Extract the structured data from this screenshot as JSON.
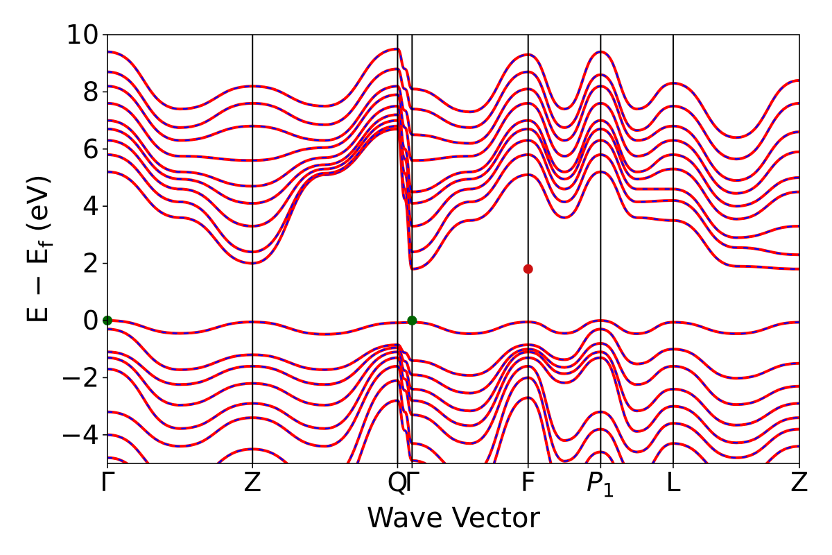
{
  "chart_data": {
    "type": "line",
    "title": "",
    "xlabel": "Wave Vector",
    "ylabel": "E − E_f (eV)",
    "ylim": [
      -5,
      10
    ],
    "yticks": [
      -4,
      -2,
      0,
      2,
      4,
      6,
      8,
      10
    ],
    "ytick_labels": [
      "−4",
      "−2",
      "0",
      "2",
      "4",
      "6",
      "8",
      "10"
    ],
    "kpath": [
      {
        "label": "Γ",
        "x": 0.0
      },
      {
        "label": "Z",
        "x": 1.0
      },
      {
        "label": "Q",
        "x": 2.0
      },
      {
        "label": "Γ",
        "x": 2.1
      },
      {
        "label": "F",
        "x": 2.9
      },
      {
        "label": "P",
        "sub": "1",
        "x": 3.4
      },
      {
        "label": "L",
        "x": 3.9
      },
      {
        "label": "Z",
        "x": 4.77
      }
    ],
    "colors": {
      "dft_bands": "#ff0000",
      "wannier_bands": "#0000ff",
      "vbm_marker": "#006400",
      "cbm_marker": "#cc1111"
    },
    "band_edges": {
      "vbm": {
        "energy": 0.0,
        "at": [
          "Γ",
          "Γ"
        ]
      },
      "cbm": {
        "energy": 1.8,
        "at": "F"
      }
    },
    "series": [
      {
        "valence": true,
        "values": [
          0.0,
          -0.05,
          -0.08,
          -0.06,
          -0.05,
          -0.0,
          -0.06,
          -0.06,
          -0.08,
          -0.06,
          -0.05,
          -0.08
        ]
      },
      {
        "valence": true,
        "values": [
          -0.3,
          -1.2,
          -0.85,
          -1.4,
          -0.85,
          -0.3,
          -1.0,
          -1.5,
          -0.8,
          -1.3,
          -0.9,
          -0.8
        ]
      },
      {
        "valence": true,
        "values": [
          -1.1,
          -1.6,
          -0.95,
          -1.9,
          -1.0,
          -0.8,
          -1.6,
          -2.3,
          -1.0,
          -1.9,
          -2.1,
          -1.0
        ]
      },
      {
        "valence": true,
        "values": [
          -1.3,
          -2.2,
          -1.1,
          -2.4,
          -1.1,
          -1.1,
          -2.4,
          -2.9,
          -1.2,
          -2.4,
          -2.6,
          -1.1
        ]
      },
      {
        "valence": true,
        "values": [
          -1.7,
          -2.9,
          -1.3,
          -2.8,
          -1.3,
          -1.3,
          -3.0,
          -3.4,
          -1.4,
          -2.9,
          -3.2,
          -1.3
        ]
      },
      {
        "valence": true,
        "values": [
          -3.2,
          -3.4,
          -1.6,
          -3.3,
          -1.6,
          -3.2,
          -3.6,
          -3.8,
          -1.7,
          -3.4,
          -3.8,
          -1.6
        ]
      },
      {
        "valence": true,
        "values": [
          -4.0,
          -4.5,
          -2.1,
          -4.3,
          -2.0,
          -3.8,
          -4.3,
          -4.4,
          -2.2,
          -4.1,
          -4.6,
          -2.0
        ]
      },
      {
        "valence": true,
        "values": [
          -4.8,
          -5.2,
          -2.8,
          -4.9,
          -2.7,
          -4.6,
          -5.1,
          -5.2,
          -3.0,
          -4.8,
          -5.3,
          -2.6
        ]
      },
      {
        "valence": false,
        "values": [
          5.2,
          2.0,
          6.7,
          1.8,
          5.1,
          5.2,
          3.5,
          1.8,
          2.6,
          6.6,
          2.1,
          6.7
        ]
      },
      {
        "valence": false,
        "values": [
          5.8,
          2.4,
          6.8,
          2.4,
          5.8,
          5.8,
          4.2,
          2.3,
          3.2,
          6.7,
          2.3,
          6.8
        ]
      },
      {
        "valence": false,
        "values": [
          6.3,
          3.3,
          7.0,
          3.3,
          6.3,
          6.3,
          4.6,
          3.3,
          4.2,
          7.0,
          3.2,
          7.0
        ]
      },
      {
        "valence": false,
        "values": [
          6.7,
          4.1,
          7.2,
          4.1,
          6.7,
          6.7,
          5.3,
          4.5,
          4.8,
          7.2,
          4.2,
          7.2
        ]
      },
      {
        "valence": false,
        "values": [
          7.0,
          4.7,
          7.5,
          4.5,
          7.0,
          7.0,
          5.8,
          5.0,
          5.6,
          7.6,
          5.0,
          7.6
        ]
      },
      {
        "valence": false,
        "values": [
          7.6,
          5.6,
          7.9,
          5.6,
          7.6,
          7.6,
          6.3,
          5.9,
          6.2,
          7.9,
          5.6,
          7.9
        ]
      },
      {
        "valence": false,
        "values": [
          8.2,
          6.8,
          8.2,
          6.5,
          8.1,
          8.2,
          6.8,
          6.6,
          6.8,
          8.2,
          6.3,
          8.3
        ]
      },
      {
        "valence": false,
        "values": [
          8.7,
          7.6,
          8.8,
          7.4,
          8.7,
          8.6,
          7.5,
          7.6,
          7.3,
          8.8,
          7.3,
          8.7
        ]
      },
      {
        "valence": false,
        "values": [
          9.4,
          8.2,
          9.5,
          8.1,
          9.3,
          9.4,
          8.3,
          8.4,
          8.1,
          9.4,
          8.2,
          9.4
        ]
      }
    ]
  }
}
